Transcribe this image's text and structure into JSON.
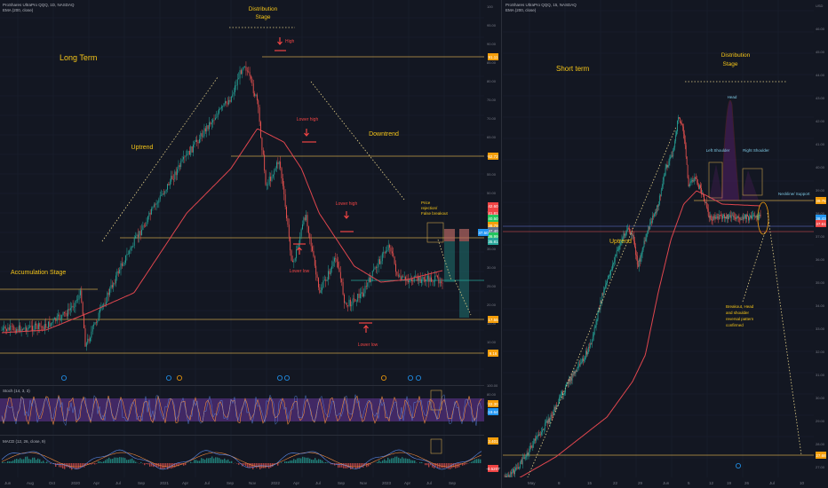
{
  "left": {
    "header": {
      "symbol": "ProShares UltraPro QQQ, 1D, NASDAQ",
      "indicator": "EMA (200, close)"
    },
    "annotations": {
      "long_term": "Long Term",
      "distribution": "Distribution",
      "stage": "Stage",
      "uptrend": "Uptrend",
      "downtrend": "Downtrend",
      "accumulation": "Accumulation Stage",
      "high": "High",
      "lower_high_1": "Lower high",
      "lower_high_2": "Lower high",
      "lower_low_1": "Lower low",
      "lower_low_2": "Lower low",
      "price_rejection_1": "Price",
      "price_rejection_2": "rejection/",
      "price_rejection_3": "False breakout"
    },
    "stoch_label": "Stoch (14, 3, 3)",
    "macd_label": "MACD (12, 26, close, 9)",
    "price_axis": [
      "100",
      "95.00",
      "90.00",
      "85.00",
      "80.00",
      "75.00",
      "70.00",
      "65.00",
      "60.00",
      "55.00",
      "50.00",
      "45.00",
      "40.00",
      "35.00",
      "30.00",
      "25.00",
      "20.00",
      "15.00",
      "10.00"
    ],
    "price_tags": [
      {
        "text": "91.11",
        "color": "#f59e0b"
      },
      {
        "text": "62.72",
        "color": "#f59e0b"
      },
      {
        "text": "42.60",
        "color": "#ef4444"
      },
      {
        "text": "41.81",
        "color": "#ef4444"
      },
      {
        "text": "40.50",
        "color": "#22c55e"
      },
      {
        "text": "38.79",
        "color": "#f59e0b"
      },
      {
        "text": "37.40",
        "color": "#64748b"
      },
      {
        "text": "36.99",
        "color": "#22c55e"
      },
      {
        "text": "35.81",
        "color": "#26a69a"
      },
      {
        "text": "17.55",
        "color": "#f59e0b"
      },
      {
        "text": "9.16",
        "color": "#f59e0b"
      },
      {
        "text": "37.50",
        "color": "#2196f3"
      }
    ],
    "stoch_axis": [
      "100.00",
      "80.00",
      "50.00",
      "20.00"
    ],
    "stoch_tags": [
      "22.30",
      "19.64"
    ],
    "macd_tags": [
      "3.401",
      "-0.5207"
    ],
    "time_axis": [
      "Jun",
      "Aug",
      "Oct",
      "2020",
      "Apr",
      "Jul",
      "Sep",
      "2021",
      "Apr",
      "Jul",
      "Sep",
      "Nov",
      "2022",
      "Apr",
      "Jul",
      "Sep",
      "Nov",
      "2023",
      "Apr",
      "Jul",
      "Sep"
    ]
  },
  "right": {
    "header": {
      "symbol": "ProShares UltraPro QQQ, 15, NASDAQ",
      "indicator": "EMA (200, close)"
    },
    "annotations": {
      "short_term": "Short term",
      "distribution": "Distribution",
      "stage": "Stage",
      "head": "Head",
      "left_shoulder": "Left Shoulder",
      "right_shoulder": "Right Shoulder",
      "neckline": "Neckline/ Support",
      "uptrend": "Uptrend",
      "breakout_1": "Breakout, Head",
      "breakout_2": "and shoulder",
      "breakout_3": "reversal pattern",
      "breakout_4": "confirmed"
    },
    "price_axis": [
      "USD",
      "46.00",
      "45.00",
      "44.00",
      "43.00",
      "42.00",
      "41.00",
      "40.00",
      "39.00",
      "38.00",
      "37.00",
      "36.00",
      "35.00",
      "34.00",
      "33.00",
      "32.00",
      "31.00",
      "30.00",
      "29.00",
      "28.00",
      "27.00"
    ],
    "price_tags": [
      {
        "text": "39.75",
        "color": "#f59e0b"
      },
      {
        "text": "38.43",
        "color": "#2196f3"
      },
      {
        "text": "37.61",
        "color": "#ef4444"
      },
      {
        "text": "27.68",
        "color": "#f59e0b"
      }
    ],
    "time_axis": [
      "May",
      "8",
      "15",
      "22",
      "29",
      "Jun",
      "5",
      "12",
      "19",
      "26",
      "Jul",
      "10"
    ]
  }
}
